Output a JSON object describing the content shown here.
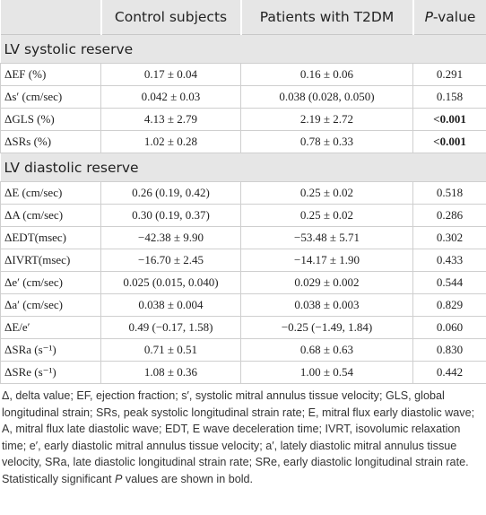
{
  "header": {
    "columns": [
      "Control subjects",
      "Patients with T2DM"
    ],
    "p_value": [
      "P",
      "-value"
    ]
  },
  "sections": [
    {
      "title": "LV systolic reserve",
      "rows": [
        {
          "label": "ΔEF (%)",
          "control": "0.17 ± 0.04",
          "t2dm": "0.16 ± 0.06",
          "p": "0.291",
          "significant": false
        },
        {
          "label": "Δs′ (cm/sec)",
          "control": "0.042 ± 0.03",
          "t2dm": "0.038 (0.028, 0.050)",
          "p": "0.158",
          "significant": false
        },
        {
          "label": "ΔGLS (%)",
          "control": "4.13 ± 2.79",
          "t2dm": "2.19 ± 2.72",
          "p": "<0.001",
          "significant": true
        },
        {
          "label": "ΔSRs (%)",
          "control": "1.02 ± 0.28",
          "t2dm": "0.78 ± 0.33",
          "p": "<0.001",
          "significant": true
        }
      ]
    },
    {
      "title": "LV diastolic reserve",
      "rows": [
        {
          "label": "ΔE (cm/sec)",
          "control": "0.26 (0.19, 0.42)",
          "t2dm": "0.25 ± 0.02",
          "p": "0.518",
          "significant": false
        },
        {
          "label": "ΔA (cm/sec)",
          "control": "0.30 (0.19, 0.37)",
          "t2dm": "0.25 ± 0.02",
          "p": "0.286",
          "significant": false
        },
        {
          "label": "ΔEDT(msec)",
          "control": "−42.38 ± 9.90",
          "t2dm": "−53.48 ± 5.71",
          "p": "0.302",
          "significant": false
        },
        {
          "label": "ΔIVRT(msec)",
          "control": "−16.70 ± 2.45",
          "t2dm": "−14.17 ± 1.90",
          "p": "0.433",
          "significant": false
        },
        {
          "label": "Δe′ (cm/sec)",
          "control": "0.025 (0.015, 0.040)",
          "t2dm": "0.029 ± 0.002",
          "p": "0.544",
          "significant": false
        },
        {
          "label": "Δa′ (cm/sec)",
          "control": "0.038 ± 0.004",
          "t2dm": "0.038 ± 0.003",
          "p": "0.829",
          "significant": false
        },
        {
          "label": "ΔE/e′",
          "control": "0.49 (−0.17, 1.58)",
          "t2dm": "−0.25 (−1.49, 1.84)",
          "p": "0.060",
          "significant": false
        },
        {
          "label": "ΔSRa (s⁻¹)",
          "control": "0.71 ± 0.51",
          "t2dm": "0.68 ± 0.63",
          "p": "0.830",
          "significant": false
        },
        {
          "label": "ΔSRe (s⁻¹)",
          "control": "1.08 ± 0.36",
          "t2dm": "1.00 ± 0.54",
          "p": "0.442",
          "significant": false
        }
      ]
    }
  ],
  "footnote": {
    "abbreviations": "Δ, delta value; EF, ejection fraction; s′, systolic mitral annulus tissue velocity; GLS, global longitudinal strain; SRs, peak systolic longitudinal strain rate; E, mitral flux early diastolic wave; A, mitral flux late diastolic wave; EDT, E wave deceleration time; IVRT, isovolumic relaxation time; e′, early diastolic mitral annulus tissue velocity; a′, lately diastolic mitral annulus tissue velocity, SRa, late diastolic longitudinal strain rate; SRe, early diastolic longitudinal strain rate.",
    "significance": [
      "Statistically significant ",
      "P",
      " values are shown in bold."
    ]
  }
}
